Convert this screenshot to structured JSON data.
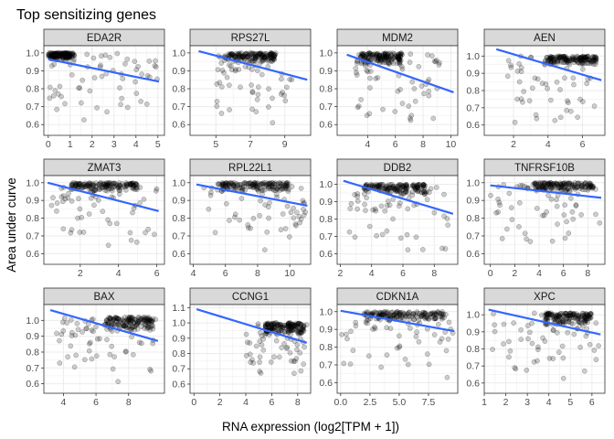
{
  "title": "Top sensitizing genes",
  "xlabel": "RNA expression (log2[TPM + 1])",
  "ylabel": "Area under curve",
  "colors": {
    "panel_bg": "#ffffff",
    "grid": "#ebebeb",
    "border": "#333333",
    "strip_bg": "#d9d9d9",
    "points": "#000000",
    "fit_line": "#3366ff"
  },
  "chart_data": [
    {
      "type": "scatter",
      "panel": "EDA2R",
      "xlim": [
        -0.2,
        5.3
      ],
      "ylim": [
        0.54,
        1.04
      ],
      "xticks": [
        0,
        1,
        2,
        3,
        4,
        5
      ],
      "xticklabels": [
        "0",
        "1",
        "2",
        "3",
        "4",
        "5"
      ],
      "yticks": [
        0.6,
        0.7,
        0.8,
        0.9,
        1.0
      ],
      "yticklabels": [
        "0.6",
        "0.7",
        "0.8",
        "0.9",
        "1.0"
      ],
      "fit": {
        "x": [
          0,
          5.05
        ],
        "y": [
          0.965,
          0.84
        ]
      },
      "x_range": [
        0,
        5
      ],
      "cluster": [
        0,
        1.2,
        0.96,
        1.0
      ]
    },
    {
      "type": "scatter",
      "panel": "RPS27L",
      "xlim": [
        3.5,
        10.5
      ],
      "ylim": [
        0.54,
        1.04
      ],
      "xticks": [
        5,
        7,
        9
      ],
      "xticklabels": [
        "5",
        "7",
        "9"
      ],
      "yticks": [
        0.6,
        0.7,
        0.8,
        0.9,
        1.0
      ],
      "yticklabels": [
        "0.6",
        "0.7",
        "0.8",
        "0.9",
        "1.0"
      ],
      "fit": {
        "x": [
          4,
          10.3
        ],
        "y": [
          1.01,
          0.85
        ]
      },
      "x_range": [
        5,
        9.5
      ],
      "cluster": [
        5.5,
        8.5,
        0.95,
        1.0
      ]
    },
    {
      "type": "scatter",
      "panel": "MDM2",
      "xlim": [
        1.8,
        10.5
      ],
      "ylim": [
        0.54,
        1.04
      ],
      "xticks": [
        4,
        6,
        8,
        10
      ],
      "xticklabels": [
        "4",
        "6",
        "8",
        "10"
      ],
      "yticks": [
        0.6,
        0.7,
        0.8,
        0.9,
        1.0
      ],
      "yticklabels": [
        "0.6",
        "0.7",
        "0.8",
        "0.9",
        "1.0"
      ],
      "fit": {
        "x": [
          2.5,
          10.2
        ],
        "y": [
          0.99,
          0.78
        ]
      },
      "x_range": [
        3,
        9.5
      ],
      "cluster": [
        3.5,
        6.5,
        0.93,
        1.0
      ]
    },
    {
      "type": "scatter",
      "panel": "AEN",
      "xlim": [
        0.3,
        7.3
      ],
      "ylim": [
        0.54,
        1.06
      ],
      "xticks": [
        2,
        4,
        6
      ],
      "xticklabels": [
        "2",
        "4",
        "6"
      ],
      "yticks": [
        0.6,
        0.7,
        0.8,
        0.9,
        1.0
      ],
      "yticklabels": [
        "0.6",
        "0.7",
        "0.8",
        "0.9",
        "1.0"
      ],
      "fit": {
        "x": [
          1,
          7.1
        ],
        "y": [
          1.04,
          0.86
        ]
      },
      "x_range": [
        1.5,
        7
      ],
      "cluster": [
        3.8,
        6.8,
        0.95,
        1.0
      ]
    },
    {
      "type": "scatter",
      "panel": "ZMAT3",
      "xlim": [
        0.1,
        6.4
      ],
      "ylim": [
        0.54,
        1.04
      ],
      "xticks": [
        2,
        4,
        6
      ],
      "xticklabels": [
        "2",
        "4",
        "6"
      ],
      "yticks": [
        0.6,
        0.7,
        0.8,
        0.9,
        1.0
      ],
      "yticklabels": [
        "0.6",
        "0.7",
        "0.8",
        "0.9",
        "1.0"
      ],
      "fit": {
        "x": [
          0.3,
          6.1
        ],
        "y": [
          1.0,
          0.84
        ]
      },
      "x_range": [
        0.5,
        6.1
      ],
      "cluster": [
        1.5,
        5,
        0.95,
        1.0
      ]
    },
    {
      "type": "scatter",
      "panel": "RPL22L1",
      "xlim": [
        3.8,
        11.3
      ],
      "ylim": [
        0.54,
        1.04
      ],
      "xticks": [
        4,
        6,
        8,
        10
      ],
      "xticklabels": [
        "4",
        "6",
        "8",
        "10"
      ],
      "yticks": [
        0.6,
        0.7,
        0.8,
        0.9,
        1.0
      ],
      "yticklabels": [
        "0.6",
        "0.7",
        "0.8",
        "0.9",
        "1.0"
      ],
      "fit": {
        "x": [
          4.2,
          11.1
        ],
        "y": [
          0.99,
          0.87
        ]
      },
      "x_range": [
        4.5,
        11
      ],
      "cluster": [
        5.5,
        10,
        0.95,
        1.0
      ]
    },
    {
      "type": "scatter",
      "panel": "DDB2",
      "xlim": [
        1.8,
        9.5
      ],
      "ylim": [
        0.54,
        1.05
      ],
      "xticks": [
        2,
        4,
        6,
        8
      ],
      "xticklabels": [
        "2",
        "4",
        "6",
        "8"
      ],
      "yticks": [
        0.6,
        0.7,
        0.8,
        0.9,
        1.0
      ],
      "yticklabels": [
        "0.6",
        "0.7",
        "0.8",
        "0.9",
        "1.0"
      ],
      "fit": {
        "x": [
          2.2,
          9.2
        ],
        "y": [
          1.02,
          0.83
        ]
      },
      "x_range": [
        2.5,
        9
      ],
      "cluster": [
        3.5,
        7.5,
        0.94,
        1.0
      ]
    },
    {
      "type": "scatter",
      "panel": "TNFRSF10B",
      "xlim": [
        -0.5,
        9.4
      ],
      "ylim": [
        0.54,
        1.04
      ],
      "xticks": [
        0,
        2,
        4,
        6,
        8
      ],
      "xticklabels": [
        "0",
        "2",
        "4",
        "6",
        "8"
      ],
      "yticks": [
        0.6,
        0.7,
        0.8,
        0.9,
        1.0
      ],
      "yticklabels": [
        "0.6",
        "0.7",
        "0.8",
        "0.9",
        "1.0"
      ],
      "fit": {
        "x": [
          0,
          9.1
        ],
        "y": [
          0.985,
          0.915
        ]
      },
      "x_range": [
        0,
        9
      ],
      "cluster": [
        3.5,
        8.5,
        0.95,
        1.0
      ]
    },
    {
      "type": "scatter",
      "panel": "BAX",
      "xlim": [
        2.8,
        10.2
      ],
      "ylim": [
        0.54,
        1.1
      ],
      "xticks": [
        4,
        6,
        8
      ],
      "xticklabels": [
        "4",
        "6",
        "8"
      ],
      "yticks": [
        0.6,
        0.7,
        0.8,
        0.9,
        1.0
      ],
      "yticklabels": [
        "0.6",
        "0.7",
        "0.8",
        "0.9",
        "1.0"
      ],
      "fit": {
        "x": [
          3.2,
          9.8
        ],
        "y": [
          1.065,
          0.87
        ]
      },
      "x_range": [
        3.5,
        9.8
      ],
      "cluster": [
        6.5,
        9.5,
        0.93,
        1.02
      ]
    },
    {
      "type": "scatter",
      "panel": "CCNG1",
      "xlim": [
        -0.3,
        9.0
      ],
      "ylim": [
        0.54,
        1.12
      ],
      "xticks": [
        0,
        2,
        4,
        6,
        8
      ],
      "xticklabels": [
        "0",
        "2",
        "4",
        "6",
        "8"
      ],
      "yticks": [
        0.6,
        0.7,
        0.8,
        0.9,
        1.0,
        1.1
      ],
      "yticklabels": [
        "0.6",
        "0.7",
        "0.8",
        "0.9",
        "1.0",
        "1.1"
      ],
      "fit": {
        "x": [
          0.2,
          8.7
        ],
        "y": [
          1.09,
          0.87
        ]
      },
      "x_range": [
        4,
        8.7
      ],
      "cluster": [
        5.5,
        8.5,
        0.92,
        1.0
      ]
    },
    {
      "type": "scatter",
      "panel": "CDKN1A",
      "xlim": [
        -0.3,
        10.0
      ],
      "ylim": [
        0.54,
        1.04
      ],
      "xticks": [
        0,
        2.5,
        5,
        7.5
      ],
      "xticklabels": [
        "0.0",
        "2.5",
        "5.0",
        "7.5"
      ],
      "yticks": [
        0.6,
        0.7,
        0.8,
        0.9,
        1.0
      ],
      "yticklabels": [
        "0.6",
        "0.7",
        "0.8",
        "0.9",
        "1.0"
      ],
      "fit": {
        "x": [
          0,
          9.7
        ],
        "y": [
          1.005,
          0.89
        ]
      },
      "x_range": [
        0,
        9.6
      ],
      "cluster": [
        2,
        9,
        0.95,
        1.0
      ]
    },
    {
      "type": "scatter",
      "panel": "XPC",
      "xlim": [
        1.0,
        6.6
      ],
      "ylim": [
        0.54,
        1.06
      ],
      "xticks": [
        1,
        2,
        3,
        4,
        5,
        6
      ],
      "xticklabels": [
        "1",
        "2",
        "3",
        "4",
        "5",
        "6"
      ],
      "yticks": [
        0.6,
        0.7,
        0.8,
        0.9,
        1.0
      ],
      "yticklabels": [
        "0.6",
        "0.7",
        "0.8",
        "0.9",
        "1.0"
      ],
      "fit": {
        "x": [
          1.2,
          6.4
        ],
        "y": [
          1.03,
          0.885
        ]
      },
      "x_range": [
        1.3,
        6.4
      ],
      "cluster": [
        3.8,
        6,
        0.94,
        1.01
      ]
    }
  ]
}
